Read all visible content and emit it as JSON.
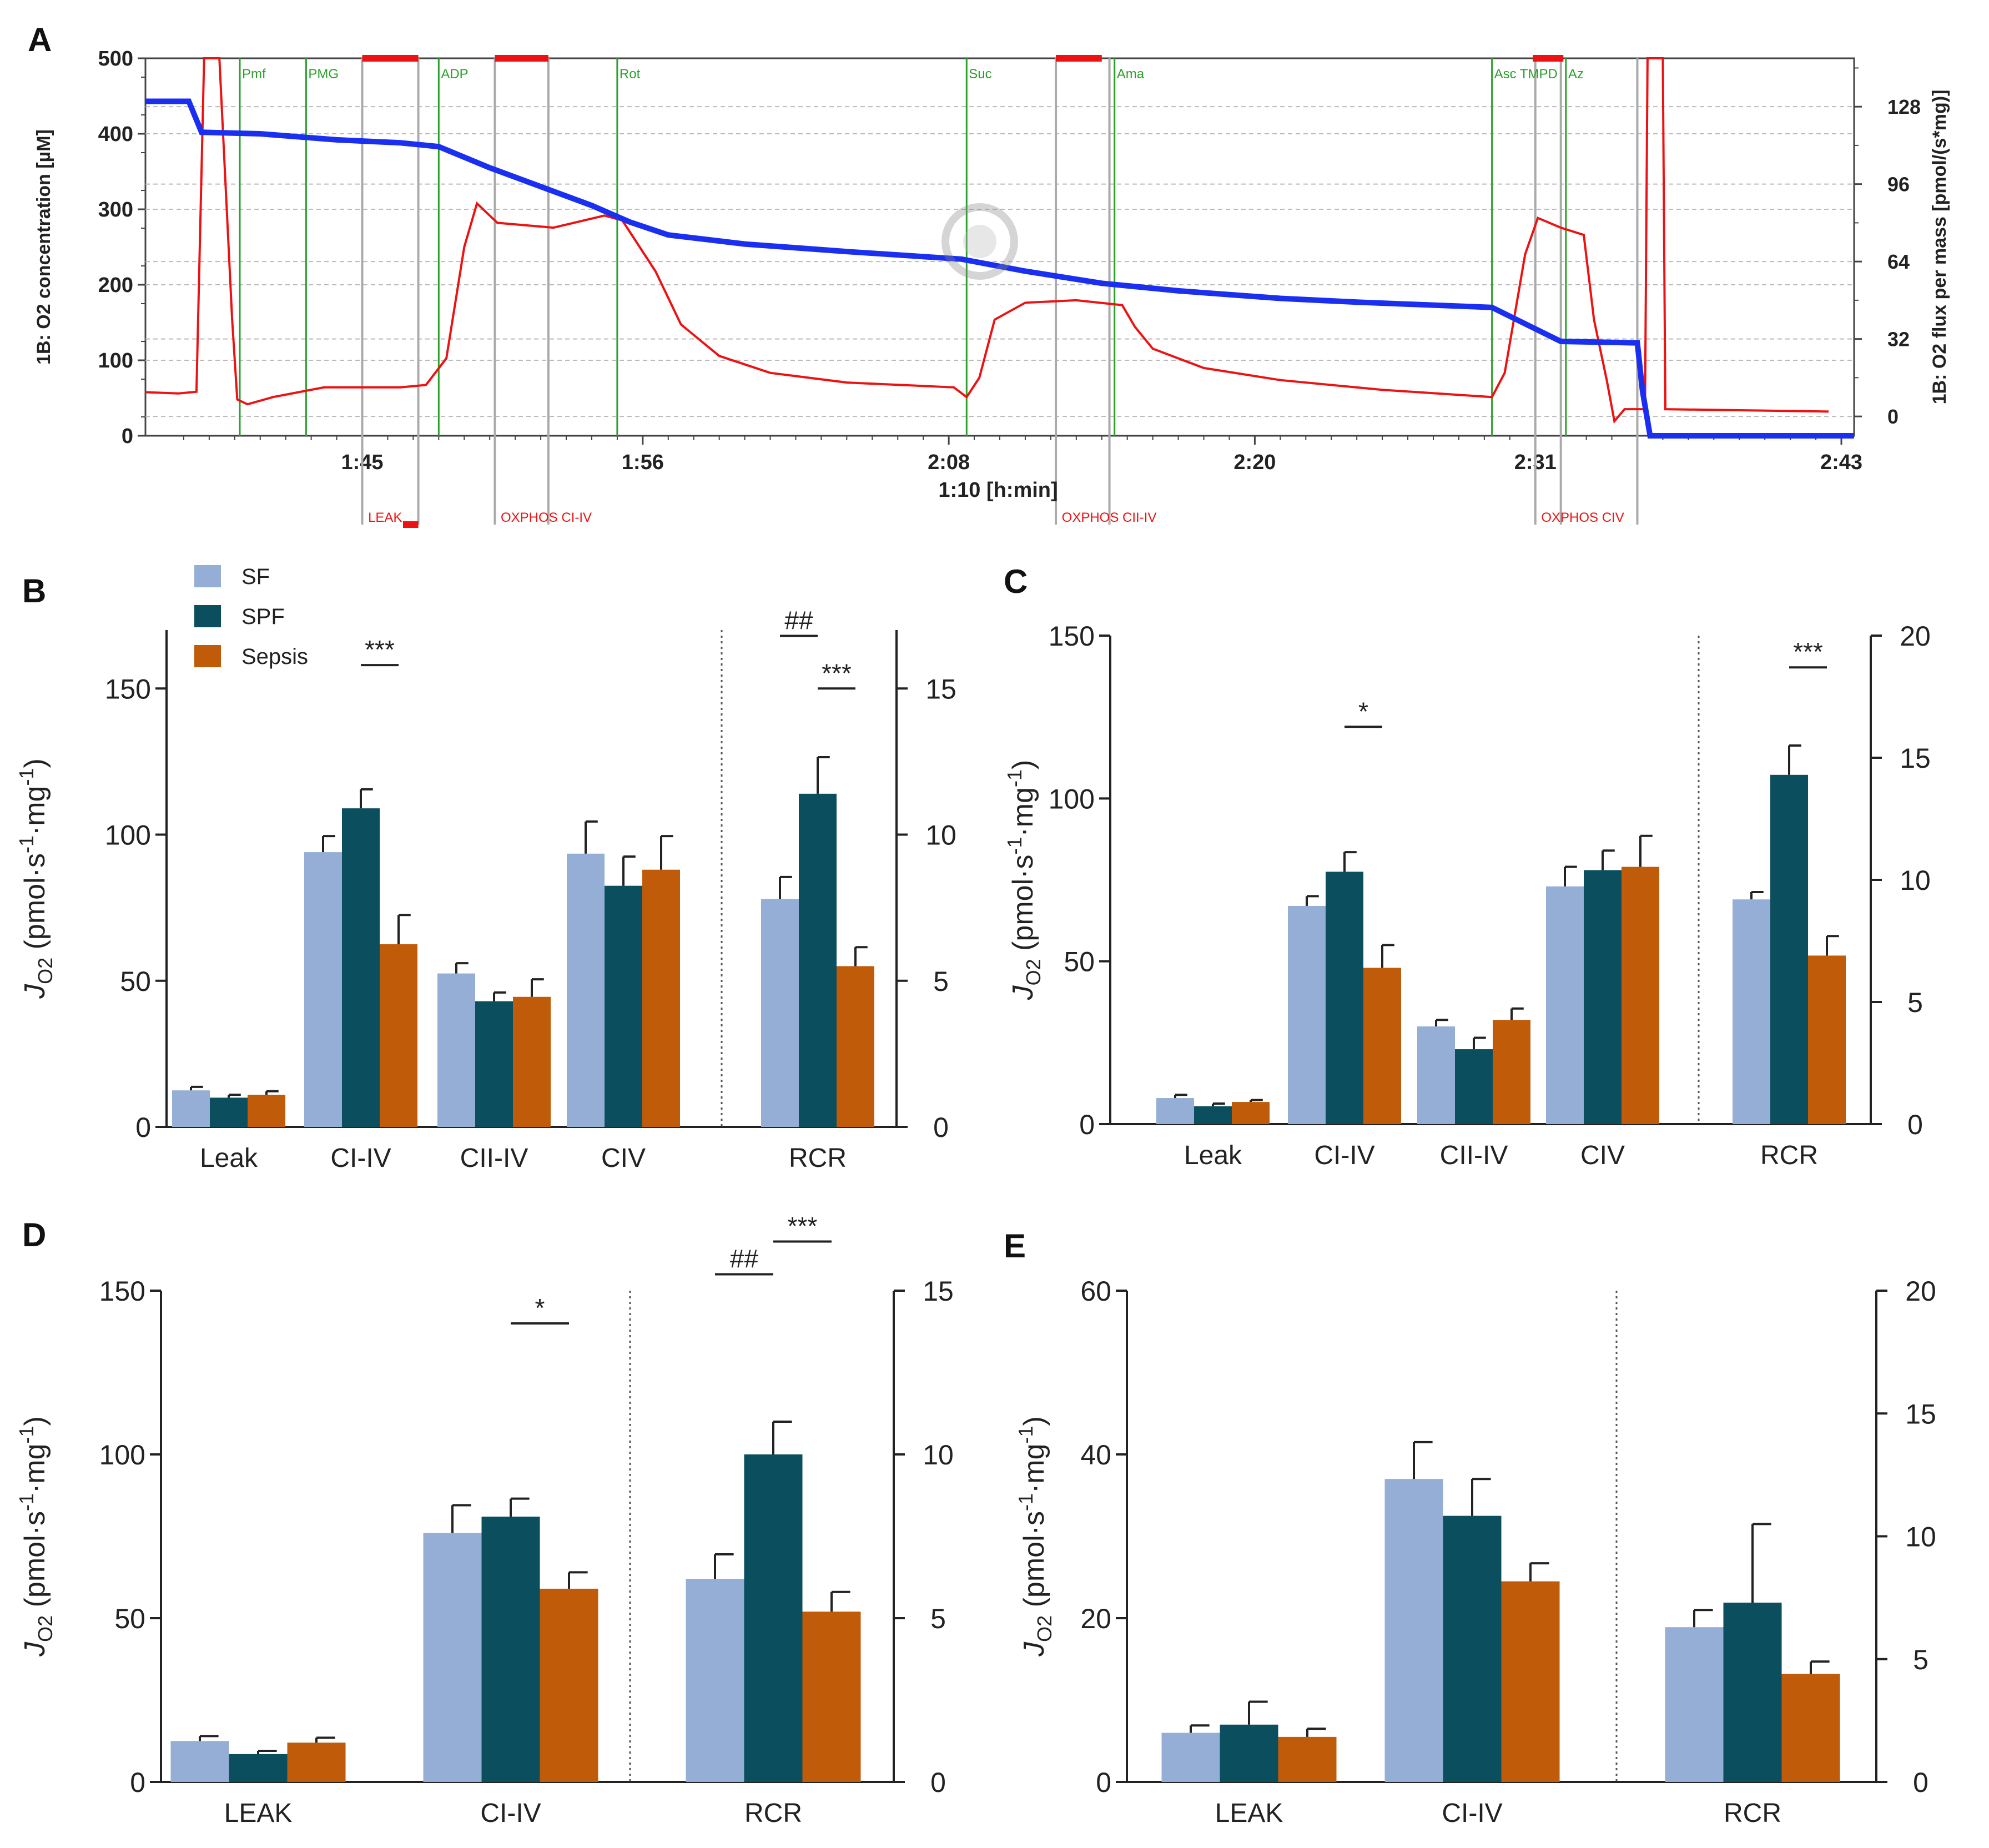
{
  "colors": {
    "SF": "#94aed6",
    "SPF": "#0b4e5e",
    "Sepsis": "#c05b0a",
    "trace_flux": "#ee1111",
    "trace_o2": "#1a2ff0",
    "marker_green": "#2aa02a",
    "marker_gray": "#aaaaaa",
    "state_bar": "#ee1111"
  },
  "chart_data": [
    {
      "panel": "A",
      "type": "line",
      "ylabel_left": "1B: O2 concentration [µM]",
      "ylabel_right": "1B: O2 flux per mass [pmol/(s*mg)]",
      "xlabel": "1:10 [h:min]",
      "ylim_left": [
        0,
        500
      ],
      "ylim_right": [
        -8,
        148
      ],
      "yticks_left": [
        "0",
        "100",
        "200",
        "300",
        "400",
        "500"
      ],
      "yticks_right": [
        "0",
        "32",
        "64",
        "96",
        "128"
      ],
      "xlim_min": [
        96.5,
        163.5
      ],
      "xticks": [
        {
          "value": 105,
          "label": "1:45"
        },
        {
          "value": 116,
          "label": "1:56"
        },
        {
          "value": 128,
          "label": "2:08"
        },
        {
          "value": 140,
          "label": "2:20"
        },
        {
          "value": 151,
          "label": "2:31"
        },
        {
          "value": 163,
          "label": "2:43"
        }
      ],
      "markers_green": [
        {
          "t": 100.2,
          "label": "Pmf"
        },
        {
          "t": 102.8,
          "label": "PMG"
        },
        {
          "t": 108.0,
          "label": "ADP"
        },
        {
          "t": 115.0,
          "label": "Rot"
        },
        {
          "t": 128.7,
          "label": "Suc"
        },
        {
          "t": 134.5,
          "label": "Ama"
        },
        {
          "t": 149.3,
          "label": "Asc TMPD"
        },
        {
          "t": 152.2,
          "label": "Az"
        }
      ],
      "markers_gray": [
        105.0,
        107.2,
        110.2,
        112.3,
        132.2,
        134.3,
        151.0,
        152.0,
        155.0
      ],
      "state_bars": [
        [
          105.0,
          107.2
        ],
        [
          110.2,
          112.3
        ],
        [
          132.2,
          134.0
        ],
        [
          150.9,
          152.1
        ]
      ],
      "state_labels": [
        {
          "t": 105.1,
          "label": "LEAK"
        },
        {
          "t": 110.3,
          "label": "OXPHOS CI-IV"
        },
        {
          "t": 132.3,
          "label": "OXPHOS CII-IV"
        },
        {
          "t": 151.1,
          "label": "OXPHOS CIV"
        }
      ],
      "o2_series": [
        [
          96.5,
          443
        ],
        [
          98.2,
          443
        ],
        [
          98.7,
          402
        ],
        [
          101,
          400
        ],
        [
          104,
          392
        ],
        [
          106.5,
          388
        ],
        [
          108,
          383
        ],
        [
          110,
          355
        ],
        [
          112,
          330
        ],
        [
          114,
          305
        ],
        [
          115.5,
          283
        ],
        [
          117,
          266
        ],
        [
          120,
          254
        ],
        [
          124,
          244
        ],
        [
          128.5,
          234
        ],
        [
          131,
          218
        ],
        [
          134,
          202
        ],
        [
          137,
          192
        ],
        [
          141,
          182
        ],
        [
          144,
          177
        ],
        [
          149.3,
          170
        ],
        [
          152,
          125
        ],
        [
          155,
          123
        ],
        [
          155.2,
          60
        ],
        [
          155.5,
          0
        ],
        [
          163.5,
          0
        ]
      ],
      "flux_series": [
        [
          96.5,
          10
        ],
        [
          97.8,
          9.5
        ],
        [
          98.5,
          10.2
        ],
        [
          98.8,
          150
        ],
        [
          99.4,
          150
        ],
        [
          99.9,
          40
        ],
        [
          100.1,
          7
        ],
        [
          100.5,
          5
        ],
        [
          101.5,
          8
        ],
        [
          103.5,
          12
        ],
        [
          106.5,
          12
        ],
        [
          107.5,
          13
        ],
        [
          108.3,
          24
        ],
        [
          109,
          70
        ],
        [
          109.5,
          88
        ],
        [
          110.3,
          80
        ],
        [
          112.5,
          78
        ],
        [
          114.5,
          83
        ],
        [
          115.2,
          81
        ],
        [
          116.5,
          60
        ],
        [
          117.5,
          38
        ],
        [
          119,
          25
        ],
        [
          121,
          18
        ],
        [
          124,
          14
        ],
        [
          128.2,
          12
        ],
        [
          128.7,
          8
        ],
        [
          129.2,
          16
        ],
        [
          129.8,
          40
        ],
        [
          131,
          47
        ],
        [
          133,
          48
        ],
        [
          134.8,
          46
        ],
        [
          135.3,
          37
        ],
        [
          136,
          28
        ],
        [
          138,
          20
        ],
        [
          141,
          15
        ],
        [
          145,
          11
        ],
        [
          149.3,
          8
        ],
        [
          149.8,
          18
        ],
        [
          150.6,
          67
        ],
        [
          151.1,
          82
        ],
        [
          152.0,
          78
        ],
        [
          152.9,
          75
        ],
        [
          153.3,
          40
        ],
        [
          153.8,
          15
        ],
        [
          154.1,
          -2
        ],
        [
          154.5,
          3
        ],
        [
          155.3,
          3
        ],
        [
          155.4,
          150
        ],
        [
          156.0,
          150
        ],
        [
          156.1,
          3
        ],
        [
          162.5,
          2
        ]
      ]
    },
    {
      "panel": "B",
      "type": "bar",
      "ylabel": "J",
      "ylabel_sub": "O2",
      "ylabel_rest": " (pmol·s",
      "ylabel_sup1": "-1",
      "ylabel_mid": "·mg",
      "ylabel_sup2": "-1",
      "ylabel_close": ")",
      "ylim_left": [
        0,
        170
      ],
      "yticks_left": [
        0,
        50,
        100,
        150
      ],
      "ylim_right": [
        0,
        17
      ],
      "yticks_right": [
        0,
        5,
        10,
        15
      ],
      "categories": [
        "Leak",
        "CI-IV",
        "CII-IV",
        "CIV",
        "RCR"
      ],
      "right_axis_from_index": 4,
      "series": [
        {
          "name": "SF",
          "values": [
            12.5,
            94,
            52.5,
            93.5,
            7.8
          ],
          "errors": [
            1.2,
            5.5,
            3.5,
            11,
            0.75
          ]
        },
        {
          "name": "SPF",
          "values": [
            10,
            109,
            43,
            82.5,
            11.4
          ],
          "errors": [
            1,
            6.5,
            3,
            10,
            1.25
          ]
        },
        {
          "name": "Sepsis",
          "values": [
            11,
            62.5,
            44.5,
            88,
            5.5
          ],
          "errors": [
            1.2,
            10,
            6,
            11.5,
            0.65
          ]
        }
      ],
      "annotations": [
        {
          "text": "***",
          "level": 158,
          "axis": "left",
          "from": 1,
          "to": 2
        },
        {
          "text": "##",
          "level": 16.8,
          "axis": "right",
          "from": 0,
          "to": 1,
          "group": 4
        },
        {
          "text": "***",
          "level": 15,
          "axis": "right",
          "from": 1,
          "to": 2,
          "group": 4
        }
      ]
    },
    {
      "panel": "C",
      "type": "bar",
      "ylabel": "J",
      "ylabel_sub": "O2",
      "ylabel_rest": " (pmol·s",
      "ylabel_sup1": "-1",
      "ylabel_mid": "·mg",
      "ylabel_sup2": "-1",
      "ylabel_close": ")",
      "ylim_left": [
        0,
        150
      ],
      "yticks_left": [
        0,
        50,
        100,
        150
      ],
      "ylim_right": [
        0,
        20
      ],
      "yticks_right": [
        0,
        5,
        10,
        15,
        20
      ],
      "categories": [
        "Leak",
        "CI-IV",
        "CII-IV",
        "CIV",
        "RCR"
      ],
      "right_axis_from_index": 4,
      "series": [
        {
          "name": "SF",
          "values": [
            8,
            67,
            30,
            73,
            9.2
          ],
          "errors": [
            1,
            3,
            2,
            6,
            0.3
          ]
        },
        {
          "name": "SPF",
          "values": [
            5.5,
            77.5,
            23,
            78,
            14.3
          ],
          "errors": [
            0.8,
            6,
            3.5,
            6,
            1.2
          ]
        },
        {
          "name": "Sepsis",
          "values": [
            6.8,
            48,
            32,
            79,
            6.9
          ],
          "errors": [
            0.6,
            7,
            3.5,
            9.5,
            0.8
          ]
        }
      ],
      "annotations": [
        {
          "text": "*",
          "level": 122,
          "axis": "left",
          "from": 1,
          "to": 2
        },
        {
          "text": "***",
          "level": 18.7,
          "axis": "right",
          "from": 1,
          "to": 2,
          "group": 4
        }
      ]
    },
    {
      "panel": "D",
      "type": "bar",
      "ylabel": "J",
      "ylabel_sub": "O2",
      "ylabel_rest": " (pmol·s",
      "ylabel_sup1": "-1",
      "ylabel_mid": "·mg",
      "ylabel_sup2": "-1",
      "ylabel_close": ")",
      "ylim_left": [
        0,
        150
      ],
      "yticks_left": [
        0,
        50,
        100,
        150
      ],
      "ylim_right": [
        0,
        15
      ],
      "yticks_right": [
        0,
        5,
        10,
        15
      ],
      "categories": [
        "LEAK",
        "CI-IV",
        "RCR"
      ],
      "right_axis_from_index": 2,
      "series": [
        {
          "name": "SF",
          "values": [
            12.5,
            76,
            6.2
          ],
          "errors": [
            1.5,
            8.5,
            0.75
          ]
        },
        {
          "name": "SPF",
          "values": [
            8.5,
            81,
            10
          ],
          "errors": [
            1,
            5.5,
            1
          ]
        },
        {
          "name": "Sepsis",
          "values": [
            12,
            59,
            5.2
          ],
          "errors": [
            1.5,
            5,
            0.6
          ]
        }
      ],
      "annotations": [
        {
          "text": "*",
          "level": 140,
          "axis": "left",
          "from": 1,
          "to": 2
        },
        {
          "text": "##",
          "level": 15.5,
          "axis": "right",
          "from": 0,
          "to": 1,
          "group": 2
        },
        {
          "text": "***",
          "level": 16.5,
          "axis": "right",
          "from": 1,
          "to": 2,
          "group": 2
        }
      ]
    },
    {
      "panel": "E",
      "type": "bar",
      "ylabel": "J",
      "ylabel_sub": "O2",
      "ylabel_rest": " (pmol·s",
      "ylabel_sup1": "-1",
      "ylabel_mid": "·mg",
      "ylabel_sup2": "-1",
      "ylabel_close": ")",
      "ylim_left": [
        0,
        60
      ],
      "yticks_left": [
        0,
        20,
        40,
        60
      ],
      "ylim_right": [
        0,
        20
      ],
      "yticks_right": [
        0,
        5,
        10,
        15,
        20
      ],
      "categories": [
        "LEAK",
        "CI-IV",
        "RCR"
      ],
      "right_axis_from_index": 2,
      "series": [
        {
          "name": "SF",
          "values": [
            6,
            37,
            6.3
          ],
          "errors": [
            0.9,
            4.5,
            0.7
          ]
        },
        {
          "name": "SPF",
          "values": [
            7,
            32.5,
            7.3
          ],
          "errors": [
            2.8,
            4.5,
            3.2
          ]
        },
        {
          "name": "Sepsis",
          "values": [
            5.5,
            24.5,
            4.4
          ],
          "errors": [
            1,
            2.2,
            0.5
          ]
        }
      ],
      "annotations": []
    }
  ],
  "legend": [
    "SF",
    "SPF",
    "Sepsis"
  ]
}
